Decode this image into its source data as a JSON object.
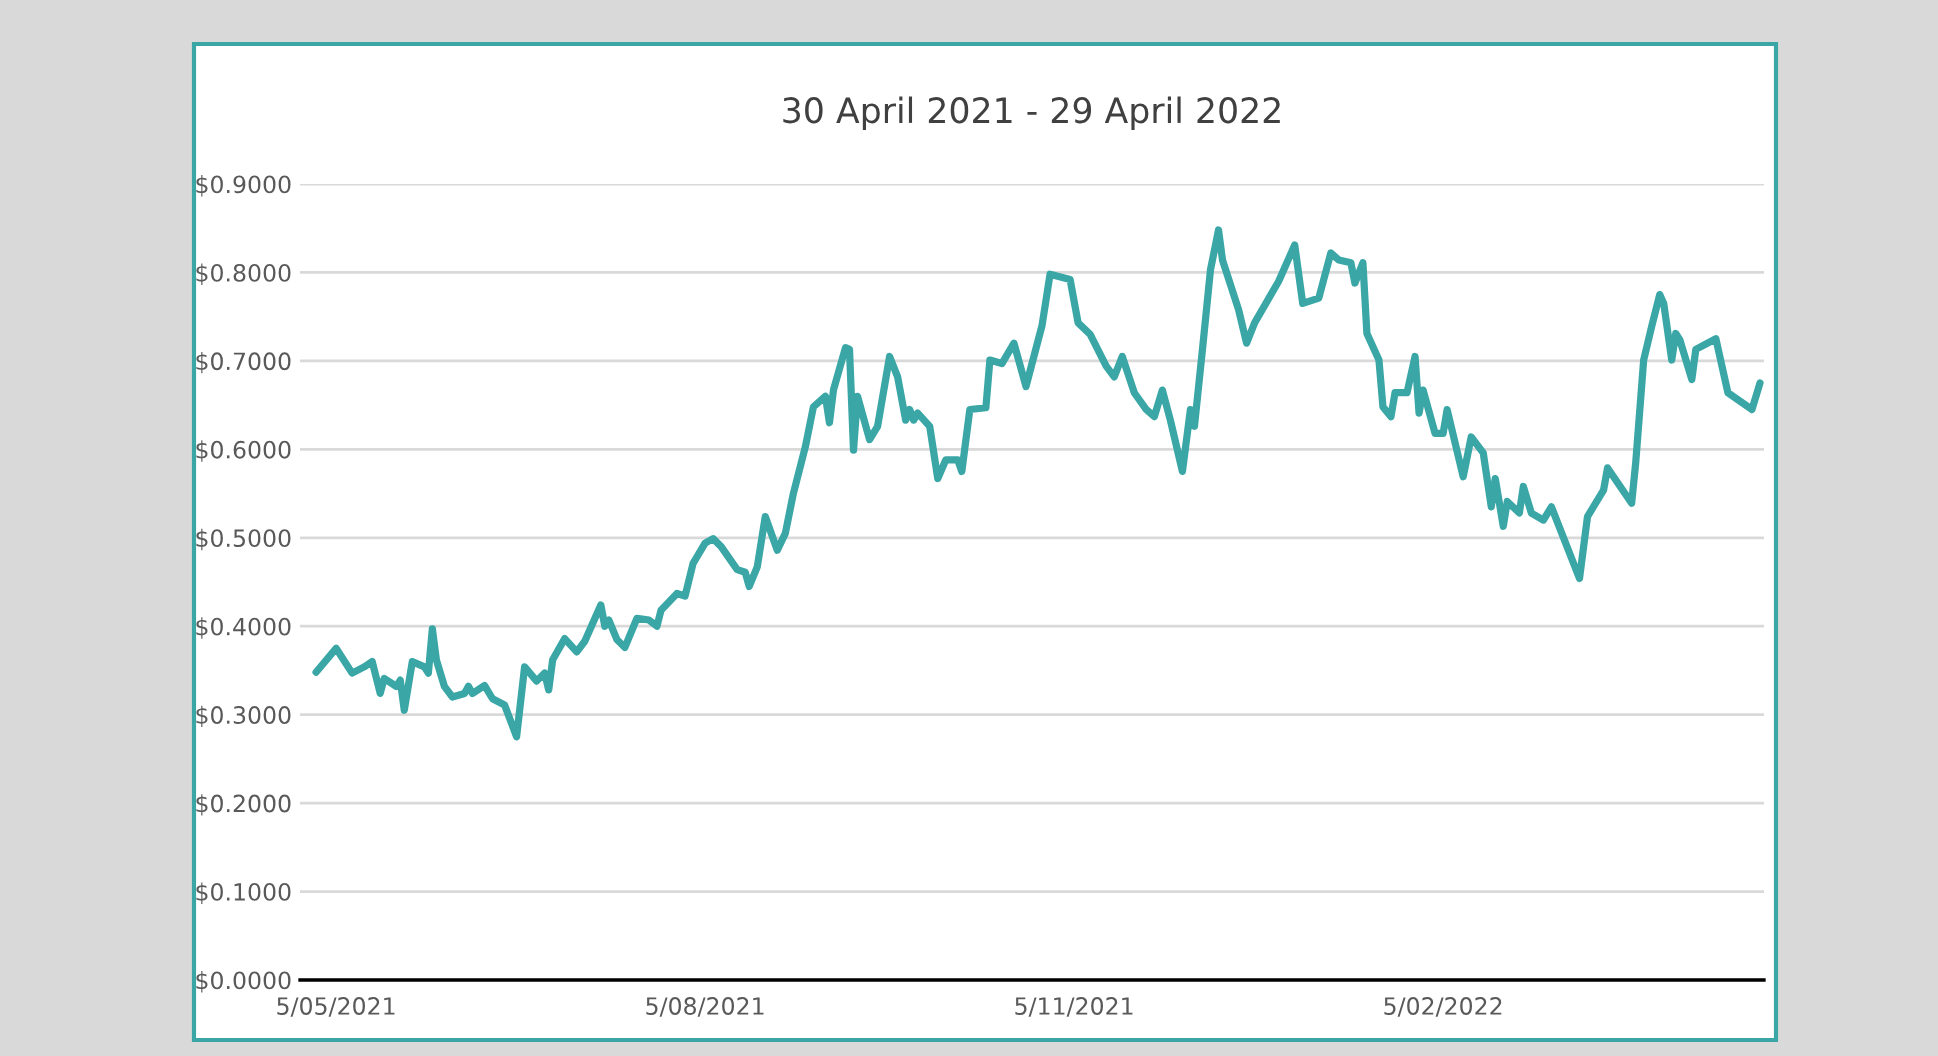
{
  "chart_data": {
    "type": "line",
    "title": "30 April 2021 - 29 April 2022",
    "x": [
      "2021-04-30",
      "2021-05-05",
      "2021-05-09",
      "2021-05-12",
      "2021-05-14",
      "2021-05-16",
      "2021-05-17",
      "2021-05-20",
      "2021-05-21",
      "2021-05-22",
      "2021-05-24",
      "2021-05-27",
      "2021-05-28",
      "2021-05-29",
      "2021-05-30",
      "2021-06-01",
      "2021-06-03",
      "2021-06-06",
      "2021-06-07",
      "2021-06-08",
      "2021-06-11",
      "2021-06-13",
      "2021-06-16",
      "2021-06-19",
      "2021-06-21",
      "2021-06-24",
      "2021-06-26",
      "2021-06-27",
      "2021-06-28",
      "2021-07-01",
      "2021-07-04",
      "2021-07-06",
      "2021-07-10",
      "2021-07-11",
      "2021-07-12",
      "2021-07-14",
      "2021-07-16",
      "2021-07-19",
      "2021-07-22",
      "2021-07-24",
      "2021-07-25",
      "2021-07-29",
      "2021-07-31",
      "2021-08-02",
      "2021-08-05",
      "2021-08-07",
      "2021-08-09",
      "2021-08-13",
      "2021-08-15",
      "2021-08-16",
      "2021-08-18",
      "2021-08-20",
      "2021-08-23",
      "2021-08-25",
      "2021-08-27",
      "2021-08-30",
      "2021-09-01",
      "2021-09-04",
      "2021-09-05",
      "2021-09-06",
      "2021-09-09",
      "2021-09-10",
      "2021-09-11",
      "2021-09-12",
      "2021-09-15",
      "2021-09-17",
      "2021-09-20",
      "2021-09-22",
      "2021-09-24",
      "2021-09-25",
      "2021-09-26",
      "2021-09-27",
      "2021-09-30",
      "2021-10-02",
      "2021-10-04",
      "2021-10-07",
      "2021-10-08",
      "2021-10-10",
      "2021-10-14",
      "2021-10-15",
      "2021-10-18",
      "2021-10-21",
      "2021-10-24",
      "2021-10-28",
      "2021-10-30",
      "2021-11-04",
      "2021-11-06",
      "2021-11-09",
      "2021-11-13",
      "2021-11-15",
      "2021-11-17",
      "2021-11-20",
      "2021-11-23",
      "2021-11-25",
      "2021-11-27",
      "2021-11-29",
      "2021-12-02",
      "2021-12-04",
      "2021-12-05",
      "2021-12-07",
      "2021-12-09",
      "2021-12-11",
      "2021-12-12",
      "2021-12-16",
      "2021-12-18",
      "2021-12-20",
      "2021-12-26",
      "2021-12-30",
      "2022-01-01",
      "2022-01-05",
      "2022-01-08",
      "2022-01-10",
      "2022-01-13",
      "2022-01-14",
      "2022-01-16",
      "2022-01-17",
      "2022-01-20",
      "2022-01-21",
      "2022-01-23",
      "2022-01-24",
      "2022-01-27",
      "2022-01-29",
      "2022-01-30",
      "2022-01-31",
      "2022-02-03",
      "2022-02-05",
      "2022-02-06",
      "2022-02-10",
      "2022-02-12",
      "2022-02-15",
      "2022-02-17",
      "2022-02-18",
      "2022-02-20",
      "2022-02-21",
      "2022-02-24",
      "2022-02-25",
      "2022-02-27",
      "2022-03-02",
      "2022-03-04",
      "2022-03-11",
      "2022-03-13",
      "2022-03-17",
      "2022-03-18",
      "2022-03-24",
      "2022-03-25",
      "2022-03-27",
      "2022-03-29",
      "2022-03-31",
      "2022-04-01",
      "2022-04-03",
      "2022-04-04",
      "2022-04-05",
      "2022-04-08",
      "2022-04-09",
      "2022-04-14",
      "2022-04-17",
      "2022-04-23",
      "2022-04-25"
    ],
    "series": [
      {
        "color": "#3aa6a6",
        "values": [
          0.348,
          0.375,
          0.347,
          0.354,
          0.36,
          0.324,
          0.341,
          0.332,
          0.339,
          0.305,
          0.36,
          0.354,
          0.347,
          0.397,
          0.362,
          0.332,
          0.32,
          0.324,
          0.332,
          0.324,
          0.333,
          0.318,
          0.311,
          0.275,
          0.354,
          0.338,
          0.347,
          0.328,
          0.362,
          0.386,
          0.371,
          0.383,
          0.424,
          0.4,
          0.407,
          0.385,
          0.376,
          0.409,
          0.407,
          0.4,
          0.418,
          0.437,
          0.434,
          0.471,
          0.494,
          0.499,
          0.49,
          0.464,
          0.461,
          0.445,
          0.467,
          0.524,
          0.486,
          0.505,
          0.55,
          0.603,
          0.648,
          0.66,
          0.63,
          0.667,
          0.715,
          0.713,
          0.599,
          0.66,
          0.611,
          0.626,
          0.705,
          0.682,
          0.633,
          0.645,
          0.633,
          0.641,
          0.626,
          0.567,
          0.588,
          0.588,
          0.575,
          0.645,
          0.647,
          0.701,
          0.697,
          0.72,
          0.671,
          0.74,
          0.798,
          0.792,
          0.743,
          0.73,
          0.694,
          0.682,
          0.705,
          0.664,
          0.645,
          0.637,
          0.667,
          0.633,
          0.575,
          0.645,
          0.626,
          0.713,
          0.803,
          0.848,
          0.814,
          0.758,
          0.72,
          0.743,
          0.79,
          0.831,
          0.765,
          0.771,
          0.822,
          0.814,
          0.811,
          0.788,
          0.811,
          0.731,
          0.701,
          0.648,
          0.637,
          0.664,
          0.664,
          0.705,
          0.641,
          0.667,
          0.618,
          0.618,
          0.645,
          0.569,
          0.614,
          0.596,
          0.535,
          0.567,
          0.513,
          0.541,
          0.528,
          0.558,
          0.528,
          0.52,
          0.535,
          0.454,
          0.524,
          0.554,
          0.579,
          0.539,
          0.584,
          0.701,
          0.739,
          0.775,
          0.765,
          0.701,
          0.731,
          0.724,
          0.679,
          0.713,
          0.725,
          0.664,
          0.645,
          0.675
        ]
      }
    ],
    "xlim": [
      "2021-04-26",
      "2022-04-26"
    ],
    "xticks": [
      {
        "value": "2021-05-05",
        "label": "5/05/2021"
      },
      {
        "value": "2021-08-05",
        "label": "5/08/2021"
      },
      {
        "value": "2021-11-05",
        "label": "5/11/2021"
      },
      {
        "value": "2022-02-05",
        "label": "5/02/2022"
      }
    ],
    "ylim": [
      0,
      0.9
    ],
    "yticks": [
      {
        "value": 0,
        "label": "$0.0000"
      },
      {
        "value": 0.1,
        "label": "$0.1000"
      },
      {
        "value": 0.2,
        "label": "$0.2000"
      },
      {
        "value": 0.3,
        "label": "$0.3000"
      },
      {
        "value": 0.4,
        "label": "$0.4000"
      },
      {
        "value": 0.5,
        "label": "$0.5000"
      },
      {
        "value": 0.6,
        "label": "$0.6000"
      },
      {
        "value": 0.7,
        "label": "$0.7000"
      },
      {
        "value": 0.8,
        "label": "$0.8000"
      },
      {
        "value": 0.9,
        "label": "$0.9000"
      }
    ],
    "grid": "y",
    "marker": "none",
    "line_style": "solid"
  }
}
